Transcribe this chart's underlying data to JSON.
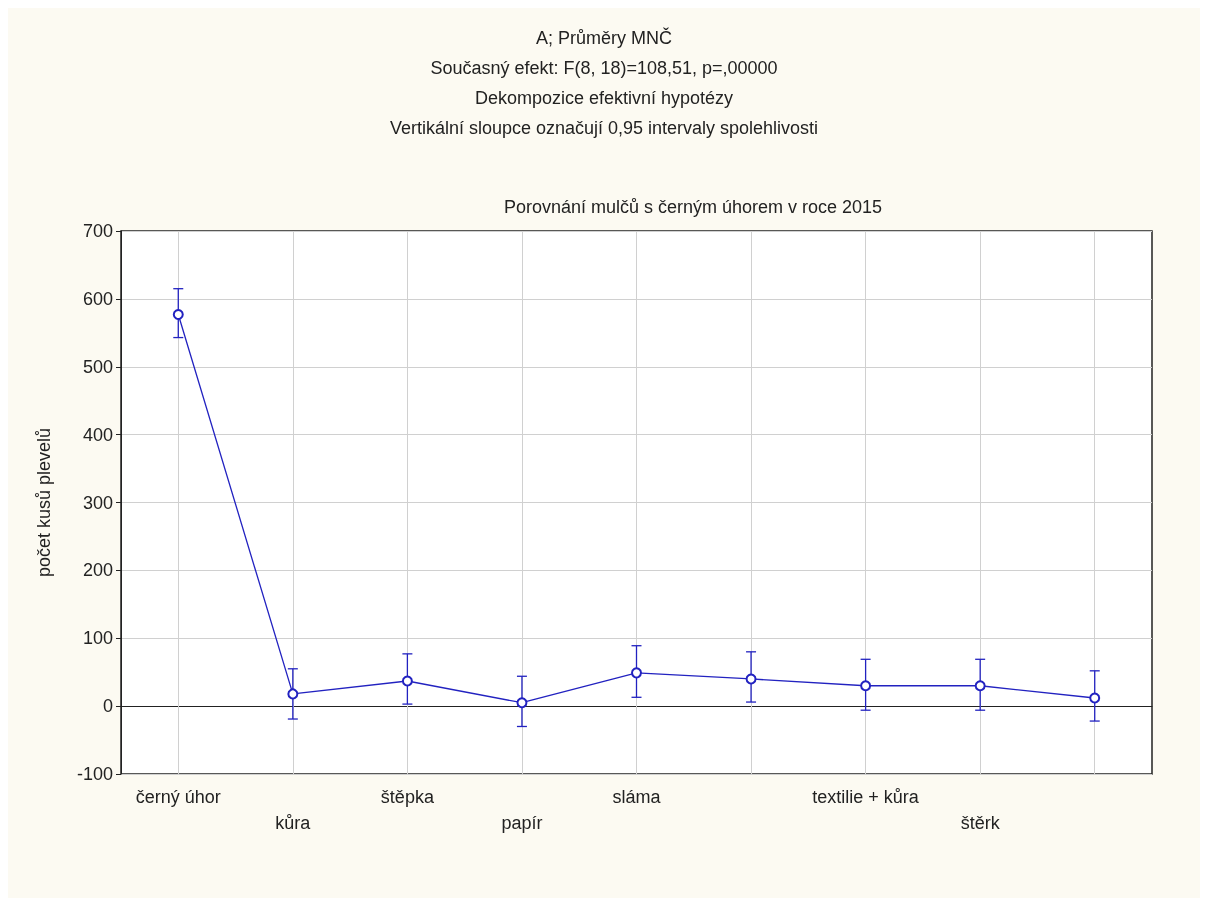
{
  "chart_data": {
    "type": "line",
    "title": "A; Průměry MNČ",
    "subtitle": "Současný efekt: F(8, 18)=108,51, p=,00000\nDekompozice efektivní hypotézy\nVertikální sloupce označují 0,95 intervaly spolehlivosti",
    "annotations": [
      "Porovnání mulčů s černým úhorem v roce 2015"
    ],
    "ylabel": "počet kusů plevelů",
    "categories": [
      "černý úhor",
      "kůra",
      "štěpka",
      "papír",
      "sláma",
      null,
      "textilie + kůra",
      "štěrk",
      null
    ],
    "series": [
      {
        "color": "#2222c0",
        "values": [
          577,
          18,
          37,
          5,
          49,
          40,
          30,
          30,
          12
        ],
        "errors": [
          [
            543,
            615
          ],
          [
            -19,
            55
          ],
          [
            3,
            77
          ],
          [
            -30,
            44
          ],
          [
            13,
            89
          ],
          [
            6,
            80
          ],
          [
            -6,
            69
          ],
          [
            -6,
            69
          ],
          [
            -22,
            52
          ]
        ]
      }
    ],
    "ylim": [
      -100,
      700
    ],
    "yticks": [
      -100,
      0,
      100,
      200,
      300,
      400,
      500,
      600,
      700
    ],
    "grid": true,
    "marker": "circle",
    "line_style": "solid"
  }
}
